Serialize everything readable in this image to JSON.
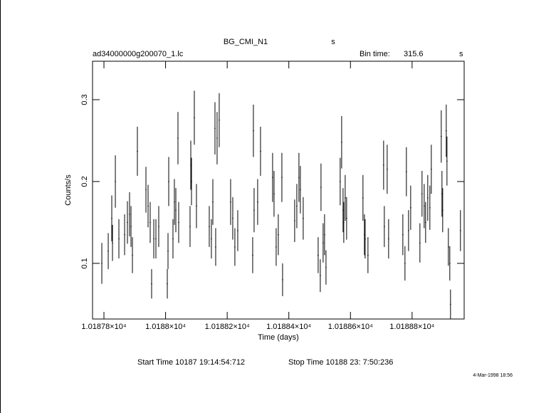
{
  "chart_data": {
    "type": "errorbar",
    "title": "BG_CMI_N1",
    "title_unit": "s",
    "file_name": "ad34000000g200070_1.lc",
    "bin_time_label": "Bin time:",
    "bin_time": 315.6,
    "bin_time_unit": "s",
    "xlabel": "Time (days)",
    "ylabel": "Counts/s",
    "start_time": "Start Time 10187 19:14:54:712",
    "stop_time": "Stop Time 10188 23: 7:50:236",
    "plot_date": "4-Mar-1998 18:56",
    "color": "#000000",
    "xlim": [
      10187.763,
      10188.969
    ],
    "ylim": [
      0.032,
      0.347
    ],
    "xticks": [
      {
        "value": 10187.8,
        "label": "1.01878×10⁴"
      },
      {
        "value": 10188.0,
        "label": "1.0188×10⁴"
      },
      {
        "value": 10188.2,
        "label": "1.01882×10⁴"
      },
      {
        "value": 10188.4,
        "label": "1.01884×10⁴"
      },
      {
        "value": 10188.6,
        "label": "1.01886×10⁴"
      },
      {
        "value": 10188.8,
        "label": "1.01888×10⁴"
      }
    ],
    "yticks": [
      0.1,
      0.2,
      0.3
    ],
    "x": [
      10187.7931,
      10187.8139,
      10187.8254,
      10187.8277,
      10187.837,
      10187.8485,
      10187.867,
      10187.8762,
      10187.8831,
      10187.8878,
      10187.8924,
      10187.9085,
      10187.9363,
      10187.9432,
      10187.9501,
      10187.9547,
      10187.9617,
      10187.9686,
      10187.9778,
      10188.0056,
      10188.0079,
      10188.0102,
      10188.024,
      10188.0286,
      10188.0333,
      10188.0402,
      10188.0425,
      10188.0794,
      10188.0818,
      10188.0841,
      10188.0933,
      10188.1002,
      10188.1418,
      10188.1487,
      10188.1534,
      10188.1603,
      10188.1626,
      10188.1672,
      10188.1741,
      10188.2111,
      10188.218,
      10188.2249,
      10188.2342,
      10188.2827,
      10188.285,
      10188.2873,
      10188.2988,
      10188.3081,
      10188.3473,
      10188.352,
      10188.3589,
      10188.3658,
      10188.3774,
      10188.3797,
      10188.4189,
      10188.4259,
      10188.4328,
      10188.4374,
      10188.4467,
      10188.4952,
      10188.5021,
      10188.5044,
      10188.5113,
      10188.5159,
      10188.5206,
      10188.5667,
      10188.5714,
      10188.576,
      10188.5783,
      10188.5829,
      10188.5875,
      10188.6406,
      10188.6453,
      10188.6476,
      10188.6568,
      10188.7076,
      10188.7099,
      10188.7192,
      10188.7238,
      10188.77,
      10188.7769,
      10188.7815,
      10188.7885,
      10188.7954,
      10188.8254,
      10188.8323,
      10188.8393,
      10188.8439,
      10188.8508,
      10188.8577,
      10188.8624,
      10188.8947,
      10188.897,
      10188.8993,
      10188.9109,
      10188.9132,
      10188.9178,
      10188.9224,
      10188.9247,
      10188.957
    ],
    "values": [
      0.1,
      0.115,
      0.155,
      0.125,
      0.2,
      0.13,
      0.135,
      0.15,
      0.16,
      0.145,
      0.11,
      0.237,
      0.19,
      0.17,
      0.15,
      0.075,
      0.13,
      0.13,
      0.145,
      0.075,
      0.115,
      0.2,
      0.13,
      0.175,
      0.165,
      0.253,
      0.15,
      0.145,
      0.22,
      0.2,
      0.278,
      0.17,
      0.145,
      0.13,
      0.175,
      0.265,
      0.12,
      0.253,
      0.275,
      0.175,
      0.155,
      0.12,
      0.14,
      0.11,
      0.262,
      0.165,
      0.175,
      0.237,
      0.205,
      0.185,
      0.12,
      0.135,
      0.205,
      0.08,
      0.152,
      0.17,
      0.205,
      0.19,
      0.155,
      0.11,
      0.085,
      0.193,
      0.125,
      0.135,
      0.095,
      0.2,
      0.248,
      0.165,
      0.15,
      0.18,
      0.155,
      0.18,
      0.135,
      0.13,
      0.11,
      0.22,
      0.145,
      0.215,
      0.13,
      0.135,
      0.1,
      0.212,
      0.14,
      0.168,
      0.125,
      0.185,
      0.17,
      0.15,
      0.18,
      0.168,
      0.215,
      0.255,
      0.185,
      0.165,
      0.262,
      0.225,
      0.12,
      0.1,
      0.05,
      0.14
    ],
    "errors": [
      0.025,
      0.022,
      0.028,
      0.022,
      0.032,
      0.024,
      0.025,
      0.026,
      0.027,
      0.025,
      0.022,
      0.03,
      0.028,
      0.026,
      0.025,
      0.018,
      0.024,
      0.024,
      0.025,
      0.018,
      0.022,
      0.03,
      0.024,
      0.028,
      0.027,
      0.032,
      0.025,
      0.025,
      0.03,
      0.029,
      0.033,
      0.027,
      0.025,
      0.024,
      0.028,
      0.032,
      0.023,
      0.032,
      0.033,
      0.028,
      0.026,
      0.023,
      0.025,
      0.022,
      0.032,
      0.027,
      0.028,
      0.03,
      0.03,
      0.028,
      0.023,
      0.025,
      0.03,
      0.02,
      0.026,
      0.027,
      0.03,
      0.029,
      0.026,
      0.022,
      0.02,
      0.029,
      0.024,
      0.025,
      0.021,
      0.029,
      0.032,
      0.027,
      0.025,
      0.028,
      0.026,
      0.028,
      0.025,
      0.024,
      0.022,
      0.03,
      0.025,
      0.03,
      0.024,
      0.025,
      0.021,
      0.03,
      0.025,
      0.027,
      0.024,
      0.028,
      0.027,
      0.025,
      0.028,
      0.027,
      0.03,
      0.032,
      0.028,
      0.027,
      0.032,
      0.03,
      0.023,
      0.021,
      0.018,
      0.025
    ]
  }
}
